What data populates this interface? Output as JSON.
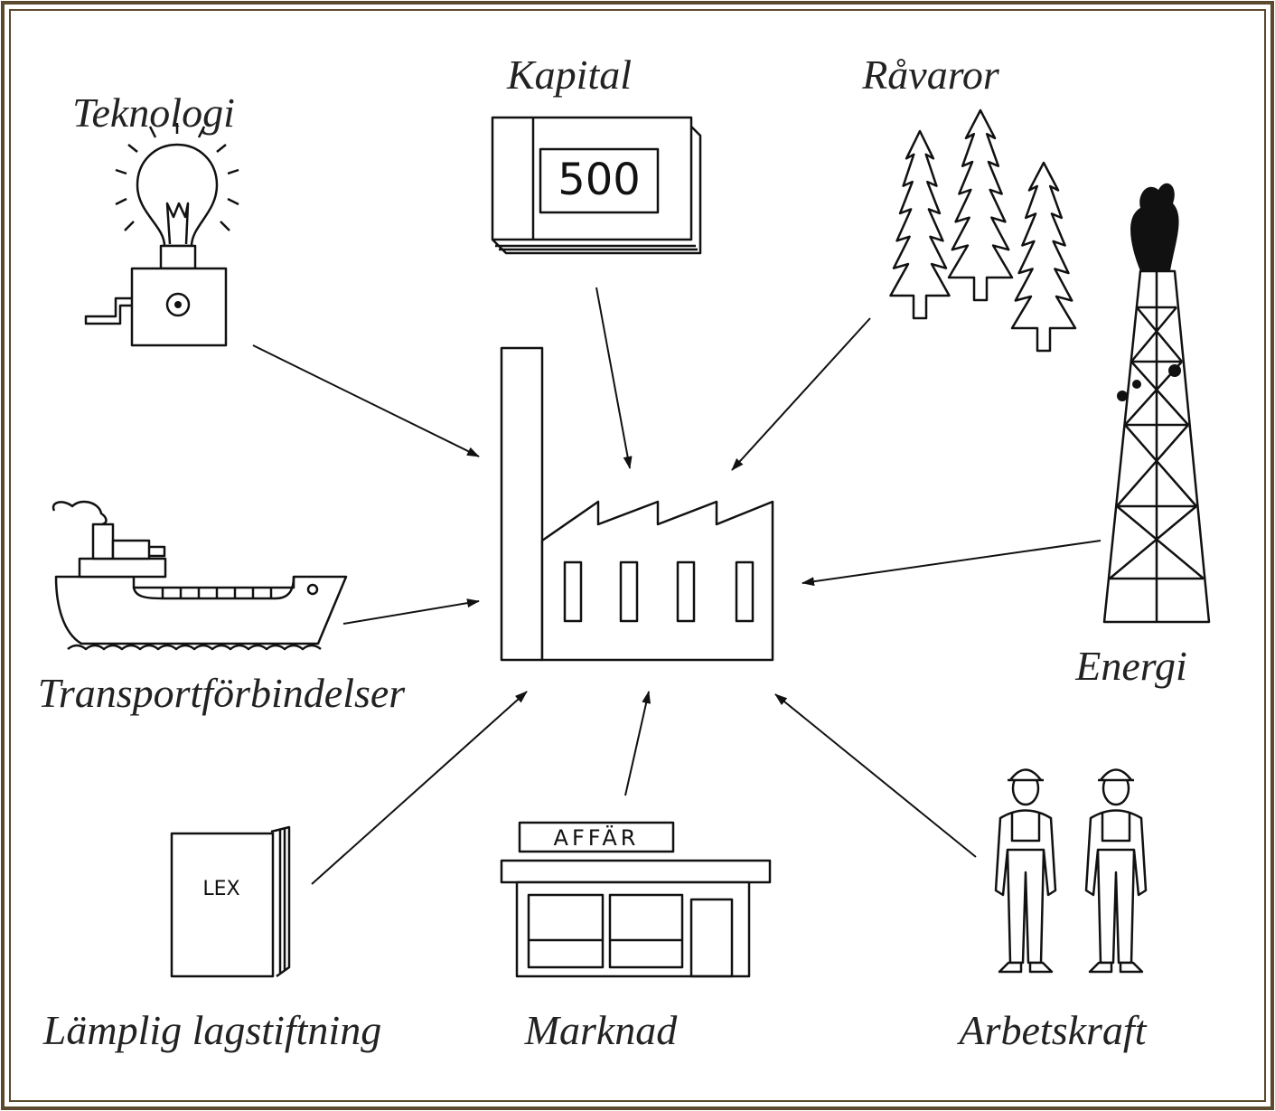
{
  "nodes": [
    {
      "label": "Teknologi"
    },
    {
      "label": "Kapital",
      "icon_text": "500"
    },
    {
      "label": "Råvaror"
    },
    {
      "label": "Energi"
    },
    {
      "label": "Transportförbindelser"
    },
    {
      "label": "Lämplig lagstiftning",
      "icon_text": "LEX"
    },
    {
      "label": "Marknad",
      "icon_text": "AFFÄR"
    },
    {
      "label": "Arbetskraft"
    }
  ]
}
